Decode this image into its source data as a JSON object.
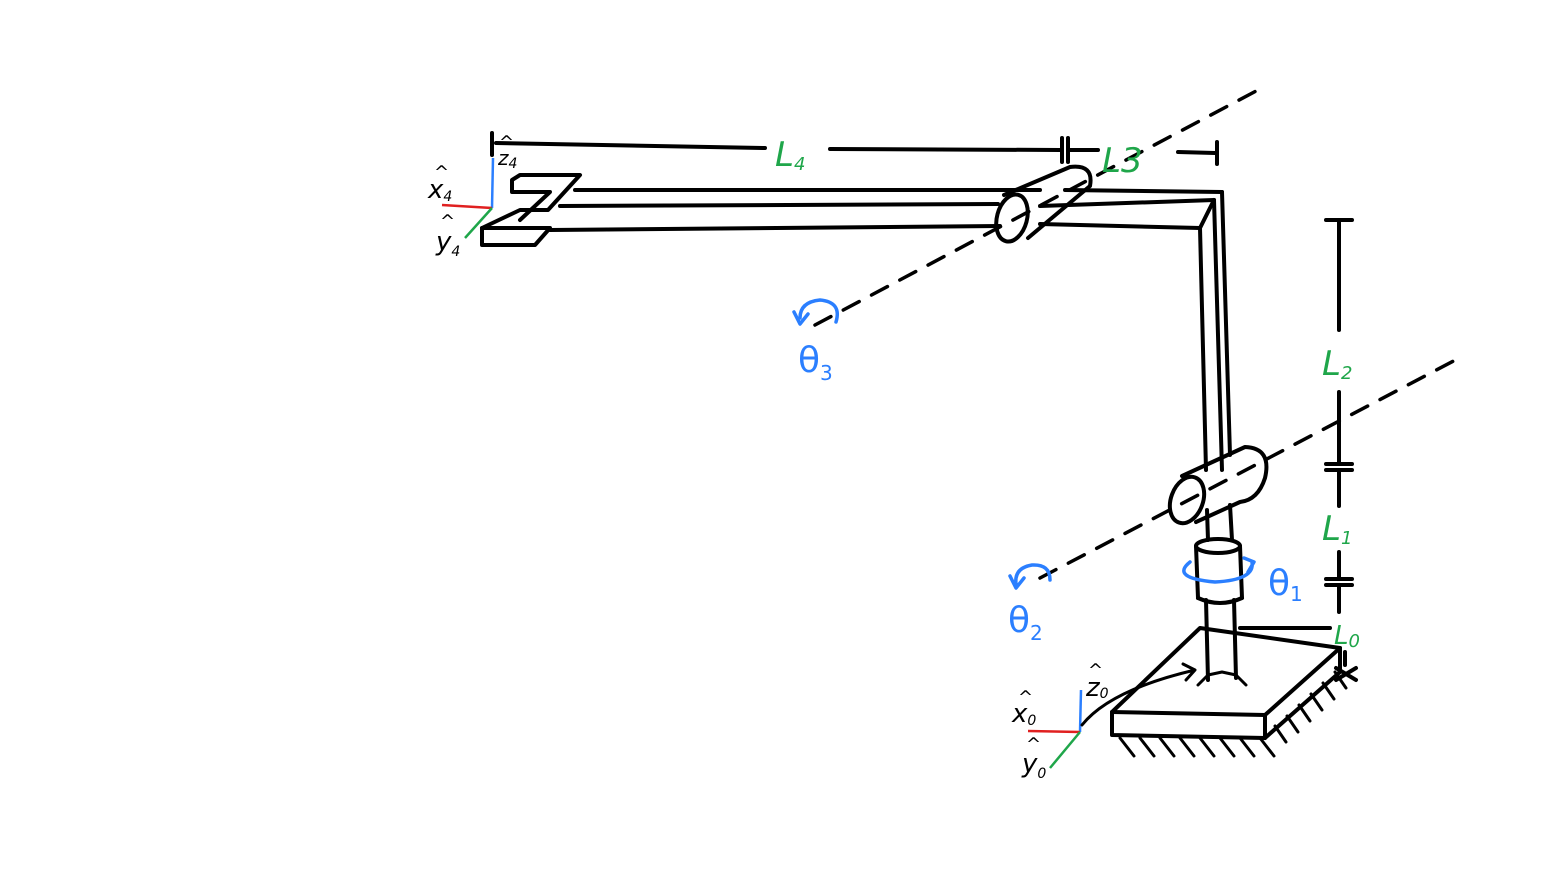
{
  "colors": {
    "ink": "#000000",
    "link_label": "#1fa64a",
    "joint_label": "#2b7fff",
    "axis_x": "#e02020",
    "axis_y": "#1fa64a",
    "axis_z": "#2b7fff"
  },
  "link_labels": [
    {
      "main": "L",
      "sub": "4"
    },
    {
      "main": "L",
      "sub": "3"
    },
    {
      "main": "L",
      "sub": "2"
    },
    {
      "main": "L",
      "sub": "1"
    },
    {
      "main": "L",
      "sub": "0"
    }
  ],
  "joint_labels": [
    {
      "main": "θ",
      "sub": "1"
    },
    {
      "main": "θ",
      "sub": "2"
    },
    {
      "main": "θ",
      "sub": "3"
    }
  ],
  "frames": {
    "end": {
      "x": "x",
      "x_sub": "4",
      "y": "y",
      "y_sub": "4",
      "z": "z",
      "z_sub": "4"
    },
    "base": {
      "x": "x",
      "x_sub": "0",
      "y": "y",
      "y_sub": "0",
      "z": "z",
      "z_sub": "0"
    }
  },
  "hat": "^"
}
